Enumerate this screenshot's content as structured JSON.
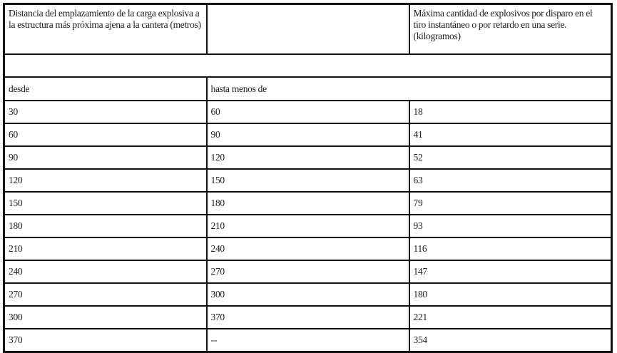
{
  "header": {
    "col1": "Distancia del emplazamiento de la carga explosiva a la estructura más próxima ajena a la cantera (metros)",
    "col2": "",
    "col3": "Máxima cantidad de explosivos por disparo en el tiro instantáneo o por retardo en una serie. (kilogramos)"
  },
  "subheader": {
    "from": "desde",
    "to": "hasta menos de"
  },
  "rows": [
    [
      "30",
      "60",
      "18"
    ],
    [
      "60",
      "90",
      "41"
    ],
    [
      "90",
      "120",
      "52"
    ],
    [
      "120",
      "150",
      "63"
    ],
    [
      "150",
      "180",
      "79"
    ],
    [
      "180",
      "210",
      "93"
    ],
    [
      "210",
      "240",
      "116"
    ],
    [
      "240",
      "270",
      "147"
    ],
    [
      "270",
      "300",
      "180"
    ],
    [
      "300",
      "370",
      "221"
    ],
    [
      "370",
      "--",
      "354"
    ]
  ]
}
